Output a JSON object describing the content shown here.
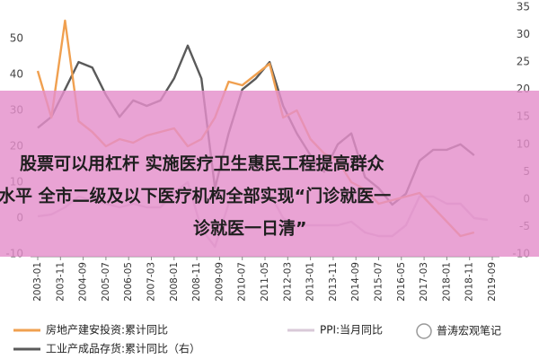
{
  "chart_data": {
    "type": "line",
    "x": [
      "2003-01",
      "2003-07",
      "2004-01",
      "2004-07",
      "2005-01",
      "2005-07",
      "2006-01",
      "2006-07",
      "2007-01",
      "2007-07",
      "2008-01",
      "2008-07",
      "2009-01",
      "2009-07",
      "2010-01",
      "2010-07",
      "2011-01",
      "2011-07",
      "2012-01",
      "2012-07",
      "2013-01",
      "2013-07",
      "2014-01",
      "2014-07",
      "2015-01",
      "2015-07",
      "2016-01",
      "2016-07",
      "2017-01",
      "2017-07",
      "2018-01",
      "2018-07",
      "2019-01",
      "2019-07"
    ],
    "xlim": [
      "2003-01",
      "2019-09"
    ],
    "xticks": [
      "2003-01",
      "2003-11",
      "2004-09",
      "2005-07",
      "2006-05",
      "2007-03",
      "2008-01",
      "2008-11",
      "2009-09",
      "2010-07",
      "2011-05",
      "2012-03",
      "2013-01",
      "2013-11",
      "2014-09",
      "2015-07",
      "2016-05",
      "2017-03",
      "2018-01",
      "2018-11",
      "2019-09"
    ],
    "ylim": [
      -10,
      60
    ],
    "yticks": [
      -10,
      0,
      10,
      20,
      30,
      40,
      50
    ],
    "y2lim": [
      -10,
      35
    ],
    "y2ticks": [
      -10,
      -5,
      0,
      5,
      10,
      15,
      20,
      25,
      30,
      35
    ],
    "series": [
      {
        "name": "房地产建安投资:累计同比",
        "color": "#f0a050",
        "values": [
          41,
          28,
          55,
          27,
          24,
          20,
          22,
          21,
          23,
          24,
          25,
          20,
          22,
          28,
          38,
          37,
          40,
          43,
          28,
          30,
          22,
          18,
          16,
          10,
          8,
          4,
          5,
          6,
          7,
          3,
          -1,
          -5,
          -4,
          null
        ]
      },
      {
        "name": "PPI:当月同比",
        "color": "#d9c9d8",
        "values": [
          0.5,
          1,
          3,
          6,
          5,
          4,
          3,
          4,
          3,
          3,
          7,
          10,
          -3,
          -8,
          4,
          5,
          7,
          7,
          0,
          -2,
          -2,
          -2,
          -2,
          -1,
          -4,
          -5,
          -5,
          -2,
          6,
          6,
          4,
          4,
          0,
          -0.5
        ]
      },
      {
        "name": "工业产成品存货:累计同比（右）",
        "color": "#5a5a5a",
        "axis": "y2",
        "values": [
          13,
          15,
          20,
          25,
          24,
          19,
          15,
          18,
          17,
          18,
          22,
          28,
          22,
          2,
          12,
          20,
          22,
          25,
          17,
          12,
          8,
          5,
          10,
          12,
          4,
          2,
          -1,
          1,
          7,
          9,
          9,
          10,
          8,
          null
        ]
      }
    ]
  },
  "overlay": {
    "lines": [
      "股票可以用杠杆 实施医疗卫生惠民工程提高群众",
      "水平 全市二级及以下医疗机构全部实现“门诊就医一",
      "诊就医一日清”"
    ]
  },
  "watermark": "普涛宏观笔记"
}
